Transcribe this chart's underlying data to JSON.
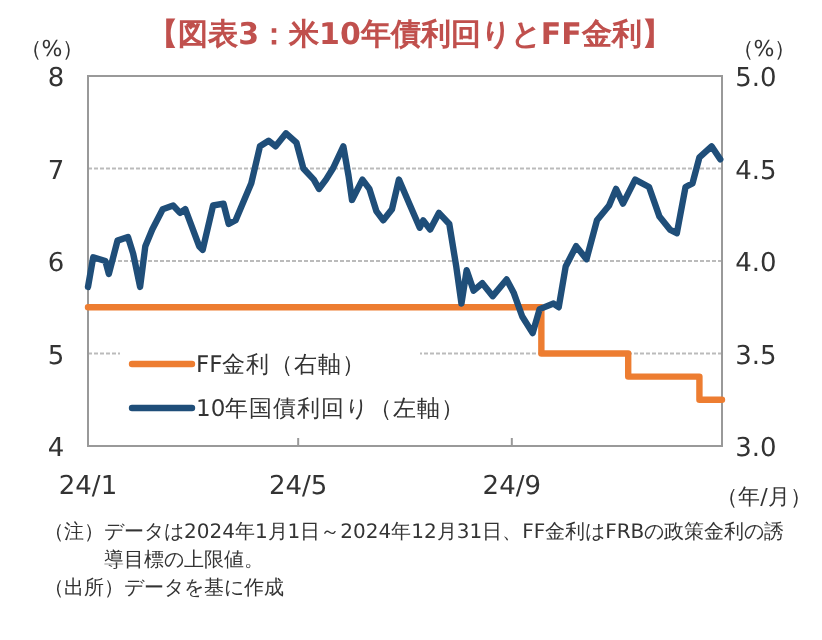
{
  "chart_data": {
    "type": "line",
    "title": "【図表3：米10年債利回りとFF金利】",
    "xlabel": "（年/月）",
    "ylabel": "（%）",
    "y2label": "（%）",
    "xlim": [
      "2024-01-01",
      "2024-12-31"
    ],
    "xticks": [
      {
        "value": "2024-01-01",
        "label": "24/1"
      },
      {
        "value": "2024-05-01",
        "label": "24/5"
      },
      {
        "value": "2024-09-01",
        "label": "24/9"
      }
    ],
    "ylim": [
      4,
      8
    ],
    "yticks": [
      4,
      5,
      6,
      7,
      8
    ],
    "y2lim": [
      3,
      5
    ],
    "y2ticks": [
      {
        "value": 3,
        "label": "3.0"
      },
      {
        "value": 3.5,
        "label": "3.5"
      },
      {
        "value": 4,
        "label": "4.0"
      },
      {
        "value": 4.5,
        "label": "4.5"
      },
      {
        "value": 5,
        "label": "5.0"
      }
    ],
    "grid": "y",
    "legend": "bottom left",
    "series": [
      {
        "name": "FF金利（右軸）",
        "type": "step",
        "color": "#ed7d31",
        "x": [
          "2024-01-01",
          "2024-09-18",
          "2024-11-07",
          "2024-12-18",
          "2024-12-31"
        ],
        "values": [
          5.5,
          5.0,
          4.75,
          4.5,
          4.5
        ]
      },
      {
        "name": "10年国債利回り（左軸）",
        "type": "line",
        "axis": "y2",
        "color": "#1f4e79",
        "x": [
          "2024-01-01",
          "2024-01-04",
          "2024-01-11",
          "2024-01-13",
          "2024-01-18",
          "2024-01-24",
          "2024-01-27",
          "2024-01-31",
          "2024-02-03",
          "2024-02-07",
          "2024-02-13",
          "2024-02-19",
          "2024-02-23",
          "2024-02-26",
          "2024-03-05",
          "2024-03-07",
          "2024-03-13",
          "2024-03-19",
          "2024-03-22",
          "2024-03-26",
          "2024-03-30",
          "2024-04-04",
          "2024-04-09",
          "2024-04-14",
          "2024-04-18",
          "2024-04-24",
          "2024-04-30",
          "2024-05-04",
          "2024-05-10",
          "2024-05-13",
          "2024-05-17",
          "2024-05-21",
          "2024-05-27",
          "2024-05-30",
          "2024-06-01",
          "2024-06-07",
          "2024-06-11",
          "2024-06-15",
          "2024-06-19",
          "2024-06-24",
          "2024-06-28",
          "2024-07-04",
          "2024-07-10",
          "2024-07-12",
          "2024-07-16",
          "2024-07-21",
          "2024-07-27",
          "2024-07-31",
          "2024-08-03",
          "2024-08-06",
          "2024-08-10",
          "2024-08-15",
          "2024-08-21",
          "2024-08-29",
          "2024-09-02",
          "2024-09-07",
          "2024-09-13",
          "2024-09-17",
          "2024-09-25",
          "2024-09-28",
          "2024-10-02",
          "2024-10-08",
          "2024-10-14",
          "2024-10-20",
          "2024-10-27",
          "2024-10-31",
          "2024-11-04",
          "2024-11-11",
          "2024-11-19",
          "2024-11-25",
          "2024-12-01",
          "2024-12-05",
          "2024-12-10",
          "2024-12-14",
          "2024-12-18",
          "2024-12-25",
          "2024-12-30"
        ],
        "values": [
          3.86,
          4.02,
          4.0,
          3.93,
          4.11,
          4.13,
          4.04,
          3.86,
          4.08,
          4.17,
          4.28,
          4.3,
          4.26,
          4.28,
          4.08,
          4.06,
          4.3,
          4.31,
          4.2,
          4.22,
          4.31,
          4.42,
          4.62,
          4.65,
          4.62,
          4.69,
          4.64,
          4.5,
          4.44,
          4.39,
          4.44,
          4.5,
          4.62,
          4.46,
          4.33,
          4.44,
          4.39,
          4.27,
          4.22,
          4.28,
          4.44,
          4.31,
          4.18,
          4.22,
          4.17,
          4.26,
          4.2,
          3.97,
          3.77,
          3.95,
          3.84,
          3.88,
          3.81,
          3.9,
          3.83,
          3.7,
          3.61,
          3.74,
          3.77,
          3.75,
          3.97,
          4.08,
          4.01,
          4.22,
          4.3,
          4.39,
          4.31,
          4.44,
          4.4,
          4.24,
          4.17,
          4.15,
          4.4,
          4.42,
          4.56,
          4.62,
          4.55
        ]
      }
    ],
    "annotations": [
      "（注）データは2024年1月1日～2024年12月31日、FF金利はFRBの政策金利の誘導目標の上限値。",
      "（出所）データを基に作成"
    ]
  }
}
